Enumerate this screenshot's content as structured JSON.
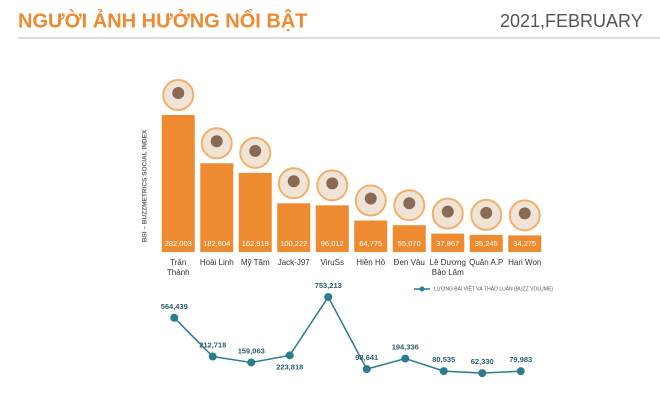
{
  "chart_data": [
    {
      "type": "bar",
      "title": "NGƯỜI ẢNH HƯỞNG NỔI BẬT",
      "subtitle": "2021,FEBRUARY",
      "ylabel": "BSI – BUZZMETRICS SOCIAL INDEX",
      "color": "#ee8a2f",
      "categories": [
        "Trấn Thành",
        "Hoài Linh",
        "Mỹ Tâm",
        "Jack-J97",
        "ViruSs",
        "Hiền Hồ",
        "Đen Vâu",
        "Lê Dương Bảo Lâm",
        "Quân A.P",
        "Hari Won"
      ],
      "values": [
        282003,
        182604,
        162919,
        100222,
        96012,
        64775,
        55070,
        37867,
        35245,
        34275
      ],
      "value_labels": [
        "282,003",
        "182,604",
        "162,919",
        "100,222",
        "96,012",
        "64,775",
        "55,070",
        "37,867",
        "35,245",
        "34,275"
      ]
    },
    {
      "type": "line",
      "series": [
        {
          "name": "LƯỢNG BÀI VIẾT VÀ THẢO LUẬN (BUZZ VOLUME)",
          "color": "#2c7b8e",
          "values": [
            564439,
            212718,
            159063,
            223818,
            753213,
            98641,
            194336,
            80535,
            62330,
            79983
          ],
          "value_labels": [
            "564,439",
            "212,718",
            "159,063",
            "223,818",
            "753,213",
            "98,641",
            "194,336",
            "80,535",
            "62,330",
            "79,983"
          ]
        }
      ]
    }
  ]
}
